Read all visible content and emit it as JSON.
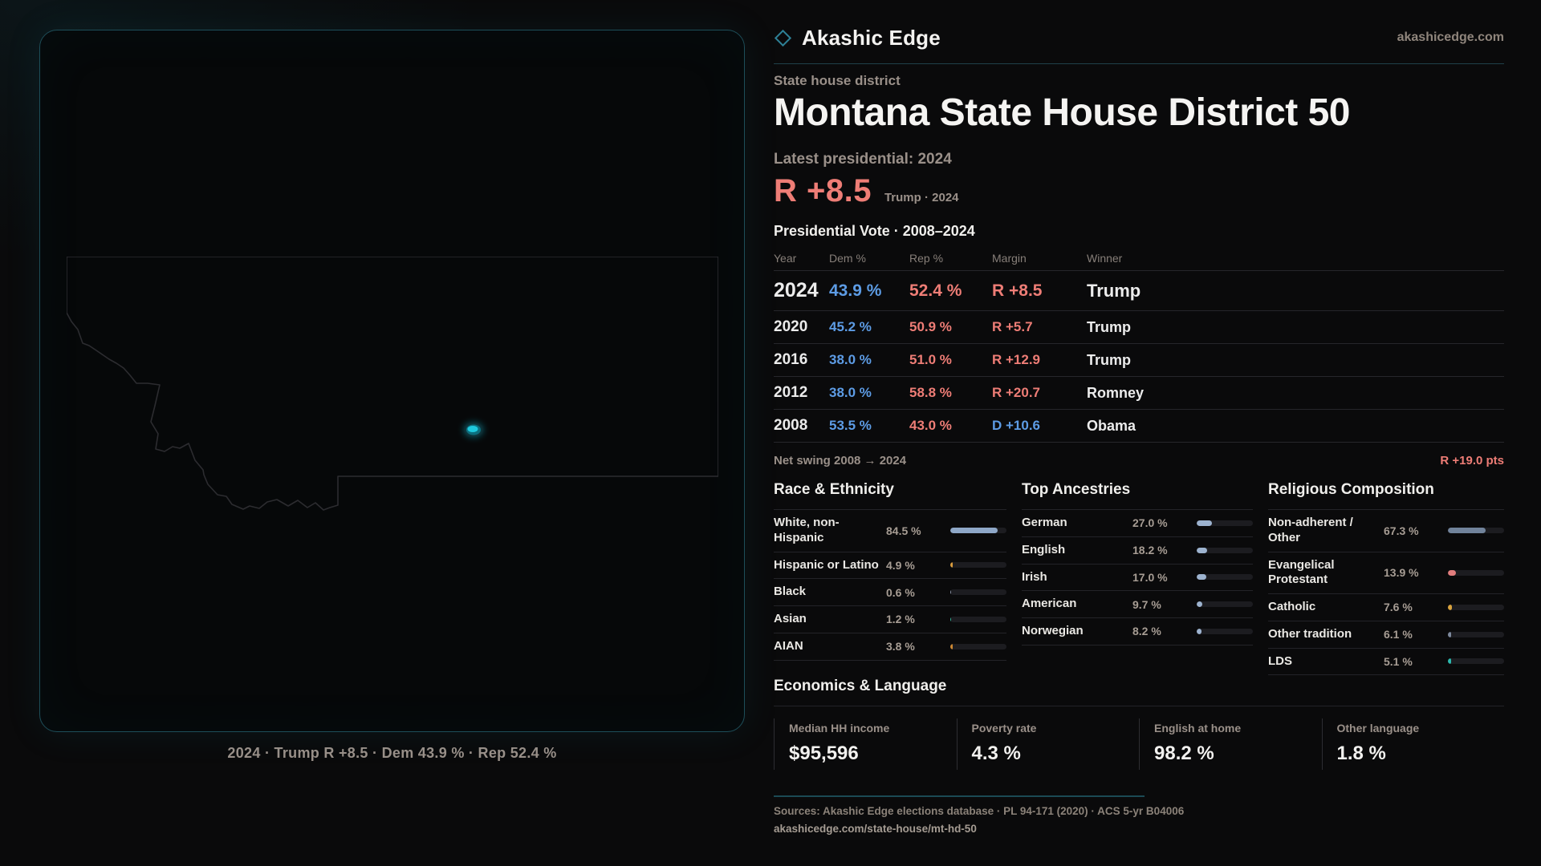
{
  "brand": {
    "name": "Akashic Edge",
    "domain": "akashicedge.com"
  },
  "colors": {
    "dem": "#5d9ce5",
    "rep": "#ee7d76",
    "accent_teal": "#1ec9de",
    "panel_border_teal": "#1d4e59"
  },
  "page": {
    "kicker": "State house district",
    "title": "Montana State House District 50",
    "latest_label": "Latest presidential: 2024",
    "margin_value": "R +8.5",
    "margin_color": "#ee7d76",
    "margin_context": "Trump · 2024"
  },
  "map": {
    "caption": "2024 · Trump R +8.5 · Dem 43.9 % · Rep 52.4 %"
  },
  "vote_table": {
    "title": "Presidential Vote · 2008–2024",
    "headers": {
      "year": "Year",
      "dem": "Dem %",
      "rep": "Rep %",
      "margin": "Margin",
      "winner": "Winner"
    },
    "rows": [
      {
        "year": "2024",
        "dem": "43.9 %",
        "rep": "52.4 %",
        "margin": "R +8.5",
        "margin_color": "#ee7d76",
        "winner": "Trump"
      },
      {
        "year": "2020",
        "dem": "45.2 %",
        "rep": "50.9 %",
        "margin": "R +5.7",
        "margin_color": "#ee7d76",
        "winner": "Trump"
      },
      {
        "year": "2016",
        "dem": "38.0 %",
        "rep": "51.0 %",
        "margin": "R +12.9",
        "margin_color": "#ee7d76",
        "winner": "Trump"
      },
      {
        "year": "2012",
        "dem": "38.0 %",
        "rep": "58.8 %",
        "margin": "R +20.7",
        "margin_color": "#ee7d76",
        "winner": "Romney"
      },
      {
        "year": "2008",
        "dem": "53.5 %",
        "rep": "43.0 %",
        "margin": "D +10.6",
        "margin_color": "#5d9ce5",
        "winner": "Obama"
      }
    ]
  },
  "net_swing": {
    "label": "Net swing 2008 → 2024",
    "value": "R +19.0 pts",
    "color": "#ee7d76"
  },
  "demographics": {
    "race": {
      "title": "Race & Ethnicity",
      "rows": [
        {
          "label": "White, non-Hispanic",
          "value": "84.5 %",
          "pct": 84.5,
          "color": "#8ea7c7"
        },
        {
          "label": "Hispanic or Latino",
          "value": "4.9 %",
          "pct": 4.9,
          "color": "#d99c3e"
        },
        {
          "label": "Black",
          "value": "0.6 %",
          "pct": 0.6,
          "color": "#8a93a5"
        },
        {
          "label": "Asian",
          "value": "1.2 %",
          "pct": 1.2,
          "color": "#35b597"
        },
        {
          "label": "AIAN",
          "value": "3.8 %",
          "pct": 3.8,
          "color": "#cc8833"
        }
      ]
    },
    "ancestries": {
      "title": "Top Ancestries",
      "rows": [
        {
          "label": "German",
          "value": "27.0 %",
          "pct": 27.0,
          "color": "#9db3cf"
        },
        {
          "label": "English",
          "value": "18.2 %",
          "pct": 18.2,
          "color": "#9db3cf"
        },
        {
          "label": "Irish",
          "value": "17.0 %",
          "pct": 17.0,
          "color": "#9db3cf"
        },
        {
          "label": "American",
          "value": "9.7 %",
          "pct": 9.7,
          "color": "#9db3cf"
        },
        {
          "label": "Norwegian",
          "value": "8.2 %",
          "pct": 8.2,
          "color": "#9db3cf"
        }
      ]
    },
    "religion": {
      "title": "Religious Composition",
      "rows": [
        {
          "label": "Non-adherent / Other",
          "value": "67.3 %",
          "pct": 67.3,
          "color": "#71839b"
        },
        {
          "label": "Evangelical Protestant",
          "value": "13.9 %",
          "pct": 13.9,
          "color": "#e27d7d"
        },
        {
          "label": "Catholic",
          "value": "7.6 %",
          "pct": 7.6,
          "color": "#d9a33e"
        },
        {
          "label": "Other tradition",
          "value": "6.1 %",
          "pct": 6.1,
          "color": "#7e8a9e"
        },
        {
          "label": "LDS",
          "value": "5.1 %",
          "pct": 5.1,
          "color": "#2cb9ae"
        }
      ]
    }
  },
  "economics": {
    "title": "Economics & Language",
    "stats": [
      {
        "label": "Median HH income",
        "value": "$95,596"
      },
      {
        "label": "Poverty rate",
        "value": "4.3 %"
      },
      {
        "label": "English at home",
        "value": "98.2 %"
      },
      {
        "label": "Other language",
        "value": "1.8 %"
      }
    ]
  },
  "footer": {
    "sources": "Sources: Akashic Edge elections database · PL 94-171 (2020) · ACS 5-yr B04006",
    "url": "akashicedge.com/state-house/mt-hd-50"
  }
}
